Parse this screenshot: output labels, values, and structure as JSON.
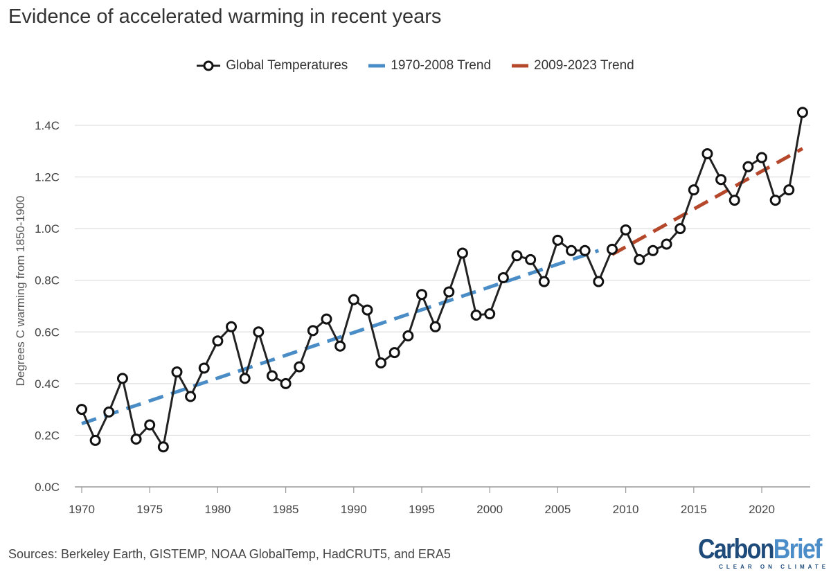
{
  "chart_data": {
    "type": "line",
    "title": "Evidence of accelerated warming in recent years",
    "ylabel": "Degrees C warming from 1850-1900",
    "xlabel": "",
    "ylim": [
      0,
      1.5
    ],
    "xlim": [
      1970,
      2023
    ],
    "yticks": [
      "0.0C",
      "0.2C",
      "0.4C",
      "0.6C",
      "0.8C",
      "1.0C",
      "1.2C",
      "1.4C"
    ],
    "xticks": [
      "1970",
      "1975",
      "1980",
      "1985",
      "1990",
      "1995",
      "2000",
      "2005",
      "2010",
      "2015",
      "2020"
    ],
    "grid": true,
    "legend_position": "top",
    "series": [
      {
        "name": "Global Temperatures",
        "color": "#222222",
        "x": [
          1970,
          1971,
          1972,
          1973,
          1974,
          1975,
          1976,
          1977,
          1978,
          1979,
          1980,
          1981,
          1982,
          1983,
          1984,
          1985,
          1986,
          1987,
          1988,
          1989,
          1990,
          1991,
          1992,
          1993,
          1994,
          1995,
          1996,
          1997,
          1998,
          1999,
          2000,
          2001,
          2002,
          2003,
          2004,
          2005,
          2006,
          2007,
          2008,
          2009,
          2010,
          2011,
          2012,
          2013,
          2014,
          2015,
          2016,
          2017,
          2018,
          2019,
          2020,
          2021,
          2022,
          2023
        ],
        "y": [
          0.3,
          0.18,
          0.29,
          0.42,
          0.185,
          0.24,
          0.155,
          0.445,
          0.35,
          0.46,
          0.565,
          0.62,
          0.42,
          0.6,
          0.43,
          0.4,
          0.465,
          0.605,
          0.65,
          0.545,
          0.725,
          0.685,
          0.48,
          0.52,
          0.585,
          0.745,
          0.62,
          0.755,
          0.905,
          0.665,
          0.67,
          0.81,
          0.895,
          0.88,
          0.795,
          0.955,
          0.915,
          0.915,
          0.795,
          0.92,
          0.995,
          0.88,
          0.915,
          0.94,
          1.0,
          1.15,
          1.29,
          1.19,
          1.11,
          1.24,
          1.275,
          1.11,
          1.15,
          1.45
        ]
      },
      {
        "name": "1970-2008 Trend",
        "color": "#4a8cc6",
        "x": [
          1970,
          2008
        ],
        "y": [
          0.245,
          0.915
        ]
      },
      {
        "name": "2009-2023 Trend",
        "color": "#b5472b",
        "x": [
          2009,
          2023
        ],
        "y": [
          0.9,
          1.31
        ]
      }
    ]
  },
  "source": "Sources: Berkeley Earth, GISTEMP, NOAA GlobalTemp, HadCRUT5, and ERA5",
  "logo": {
    "part1": "Carbon",
    "part2": "Brief",
    "tagline": "CLEAR ON CLIMATE"
  }
}
